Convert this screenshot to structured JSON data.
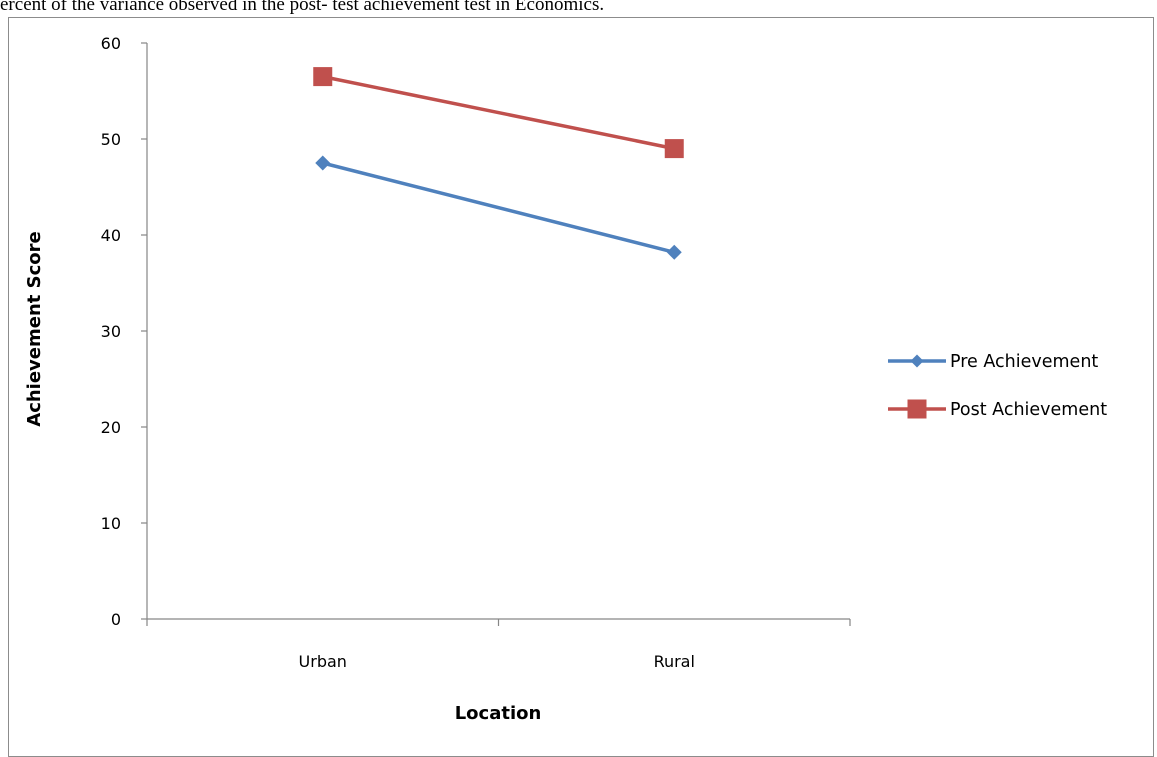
{
  "caption": "ercent of the variance observed in the post- test achievement test in Economics.",
  "chart_data": {
    "type": "line",
    "categories": [
      "Urban",
      "Rural"
    ],
    "series": [
      {
        "name": "Pre Achievement",
        "values": [
          47.5,
          38.2
        ],
        "color": "#4f81bd",
        "marker": "diamond"
      },
      {
        "name": "Post Achievement",
        "values": [
          56.5,
          49
        ],
        "color": "#c0504d",
        "marker": "square"
      }
    ],
    "title": "",
    "xlabel": "Location",
    "ylabel": "Achievement Score",
    "ylim": [
      0,
      60
    ],
    "yticks": [
      0,
      10,
      20,
      30,
      40,
      50,
      60
    ],
    "grid": false,
    "legend": "right"
  }
}
